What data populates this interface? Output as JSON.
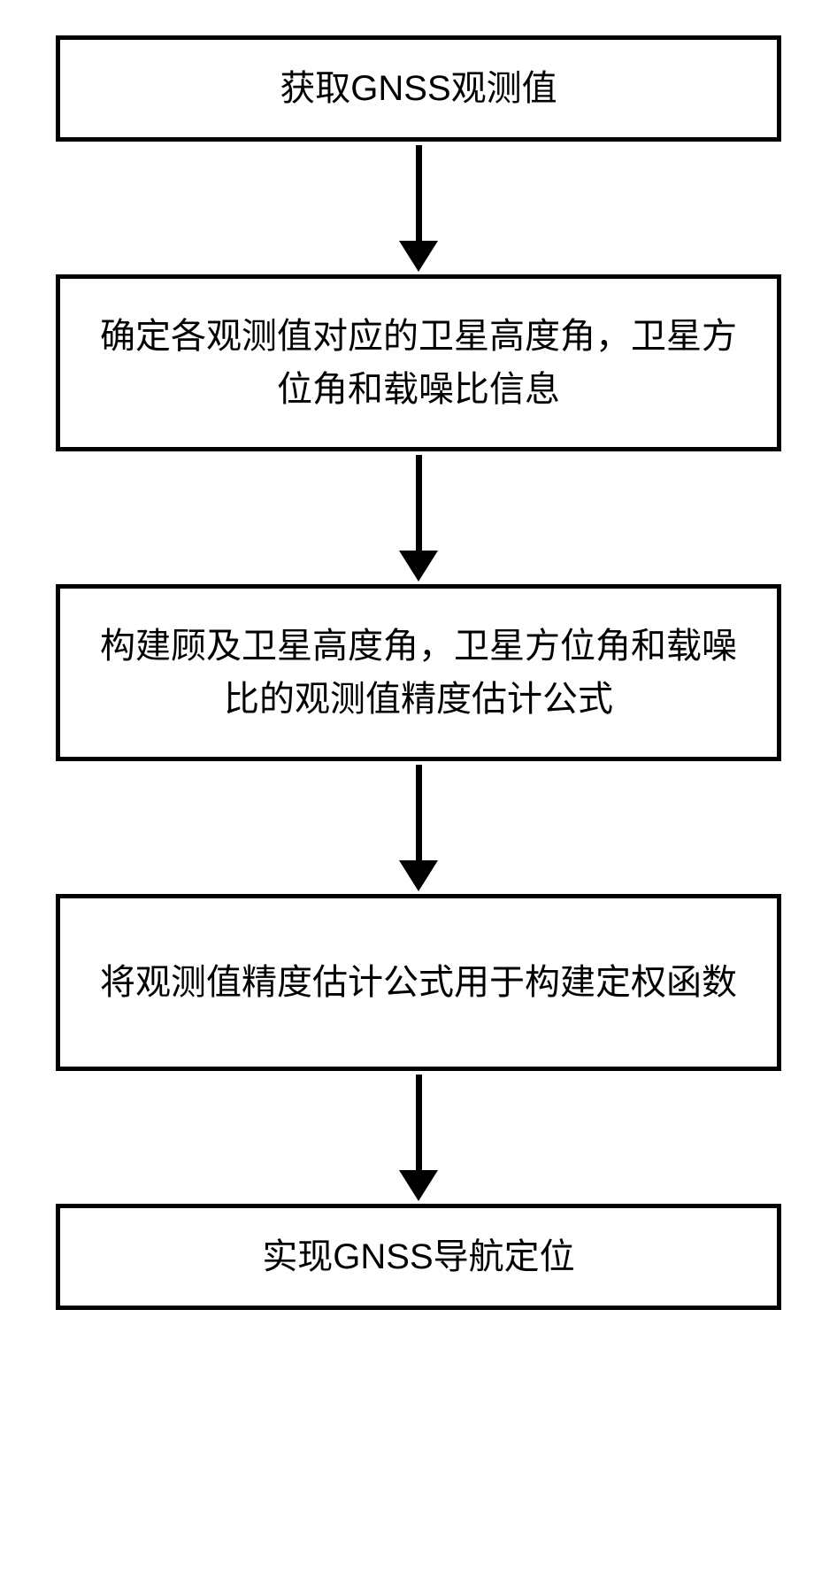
{
  "flowchart": {
    "type": "flowchart",
    "direction": "vertical",
    "box_border_color": "#000000",
    "box_border_width": 5,
    "box_background": "#ffffff",
    "text_color": "#000000",
    "font_size": 40,
    "arrow_color": "#000000",
    "arrow_line_width": 7,
    "arrow_head_width": 44,
    "arrow_head_height": 35,
    "nodes": [
      {
        "id": "n1",
        "text": "获取GNSS观测值",
        "lines": 1
      },
      {
        "id": "n2",
        "text": "确定各观测值对应的卫星高度角，卫星方位角和载噪比信息",
        "lines": 2
      },
      {
        "id": "n3",
        "text": "构建顾及卫星高度角，卫星方位角和载噪比的观测值精度估计公式",
        "lines": 2
      },
      {
        "id": "n4",
        "text": "将观测值精度估计公式用于构建定权函数",
        "lines": 2
      },
      {
        "id": "n5",
        "text": "实现GNSS导航定位",
        "lines": 1
      }
    ],
    "edges": [
      {
        "from": "n1",
        "to": "n2"
      },
      {
        "from": "n2",
        "to": "n3"
      },
      {
        "from": "n3",
        "to": "n4"
      },
      {
        "from": "n4",
        "to": "n5"
      }
    ]
  }
}
